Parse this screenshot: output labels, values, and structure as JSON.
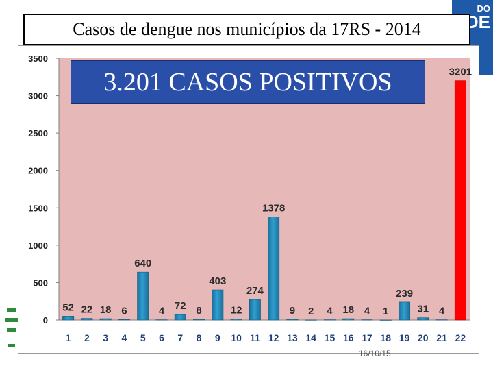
{
  "slide": {
    "title": "Casos  de dengue nos municípios da 17RS - 2014",
    "banner": "3.201  CASOS POSITIVOS",
    "date": "16/10/15",
    "corner_text_top": "DO",
    "corner_text_bottom": "DE"
  },
  "colors": {
    "plot_area": "#e6b9b8",
    "bar": "#2f9fd0",
    "bar_highlight": "#ff0000",
    "banner": "#2a4fa8",
    "corner_band": "#1e5aa8"
  },
  "chart_data": {
    "type": "bar",
    "categories": [
      "1",
      "2",
      "3",
      "4",
      "5",
      "6",
      "7",
      "8",
      "9",
      "10",
      "11",
      "12",
      "13",
      "14",
      "15",
      "16",
      "17",
      "18",
      "19",
      "20",
      "21",
      "22"
    ],
    "values": [
      52,
      22,
      18,
      6,
      640,
      4,
      72,
      8,
      403,
      12,
      274,
      1378,
      9,
      2,
      4,
      18,
      4,
      1,
      239,
      31,
      4,
      3201
    ],
    "data_labels": [
      "52",
      "22",
      "18",
      "6",
      "640",
      "4",
      "72",
      "8",
      "403",
      "12",
      "274",
      "1378",
      "9",
      "2",
      "4",
      "18",
      "4",
      "1",
      "239",
      "31",
      "4",
      "3201"
    ],
    "highlight_index": 21,
    "title": "",
    "xlabel": "",
    "ylabel": "",
    "ylim": [
      0,
      3500
    ],
    "yticks": [
      0,
      500,
      1000,
      1500,
      2000,
      2500,
      3000,
      3500
    ],
    "ytick_labels": [
      "0",
      "500",
      "1000",
      "1500",
      "2000",
      "2500",
      "3000",
      "3500"
    ],
    "grid": false,
    "legend": "none"
  }
}
